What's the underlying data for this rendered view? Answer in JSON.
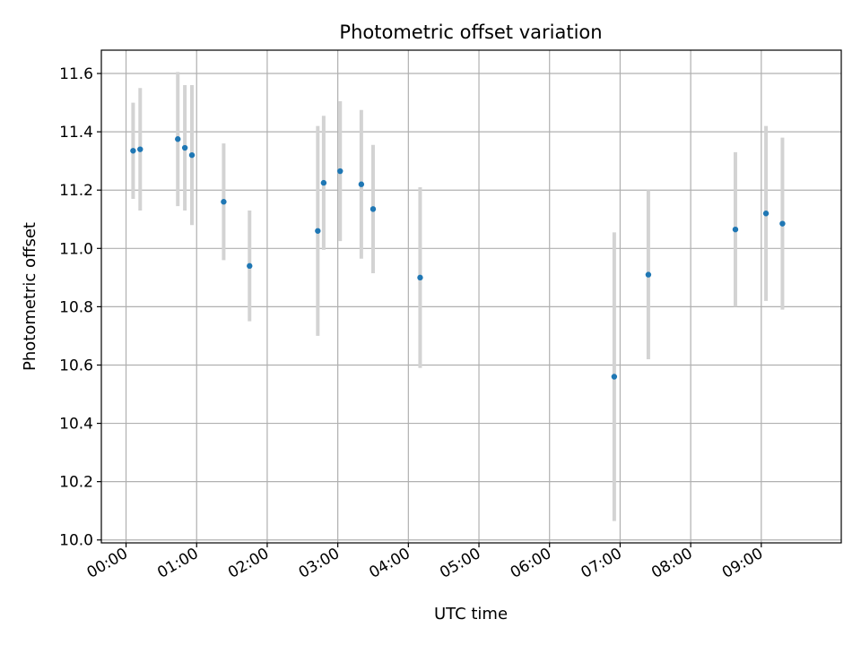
{
  "chart_data": {
    "type": "scatter",
    "title": "Photometric offset variation",
    "xlabel": "UTC time",
    "ylabel": "Photometric offset",
    "x_unit": "time of day (HH:MM)",
    "xlim": [
      "-00:21",
      "10:08"
    ],
    "ylim": [
      9.99,
      11.68
    ],
    "grid": true,
    "x_ticks": [
      "00:00",
      "01:00",
      "02:00",
      "03:00",
      "04:00",
      "05:00",
      "06:00",
      "07:00",
      "08:00",
      "09:00"
    ],
    "y_ticks": [
      "10.0",
      "10.2",
      "10.4",
      "10.6",
      "10.8",
      "11.0",
      "11.2",
      "11.4",
      "11.6"
    ],
    "colors": {
      "marker": "#1f77b4",
      "errorbar": "#d3d3d3",
      "grid": "#b0b0b0"
    },
    "points": [
      {
        "x": "00:06",
        "y": 11.335,
        "err": 0.165
      },
      {
        "x": "00:12",
        "y": 11.34,
        "err": 0.21
      },
      {
        "x": "00:44",
        "y": 11.375,
        "err": 0.23
      },
      {
        "x": "00:50",
        "y": 11.345,
        "err": 0.215
      },
      {
        "x": "00:56",
        "y": 11.32,
        "err": 0.24
      },
      {
        "x": "01:23",
        "y": 11.16,
        "err": 0.2
      },
      {
        "x": "01:45",
        "y": 10.94,
        "err": 0.19
      },
      {
        "x": "02:43",
        "y": 11.06,
        "err": 0.36
      },
      {
        "x": "02:48",
        "y": 11.225,
        "err": 0.23
      },
      {
        "x": "03:02",
        "y": 11.265,
        "err": 0.24
      },
      {
        "x": "03:20",
        "y": 11.22,
        "err": 0.255
      },
      {
        "x": "03:30",
        "y": 11.135,
        "err": 0.22
      },
      {
        "x": "04:10",
        "y": 10.9,
        "err": 0.31
      },
      {
        "x": "06:55",
        "y": 10.56,
        "err": 0.495
      },
      {
        "x": "07:24",
        "y": 10.91,
        "err": 0.29
      },
      {
        "x": "08:38",
        "y": 11.065,
        "err": 0.265
      },
      {
        "x": "09:04",
        "y": 11.12,
        "err": 0.3
      },
      {
        "x": "09:18",
        "y": 11.085,
        "err": 0.295
      }
    ]
  }
}
